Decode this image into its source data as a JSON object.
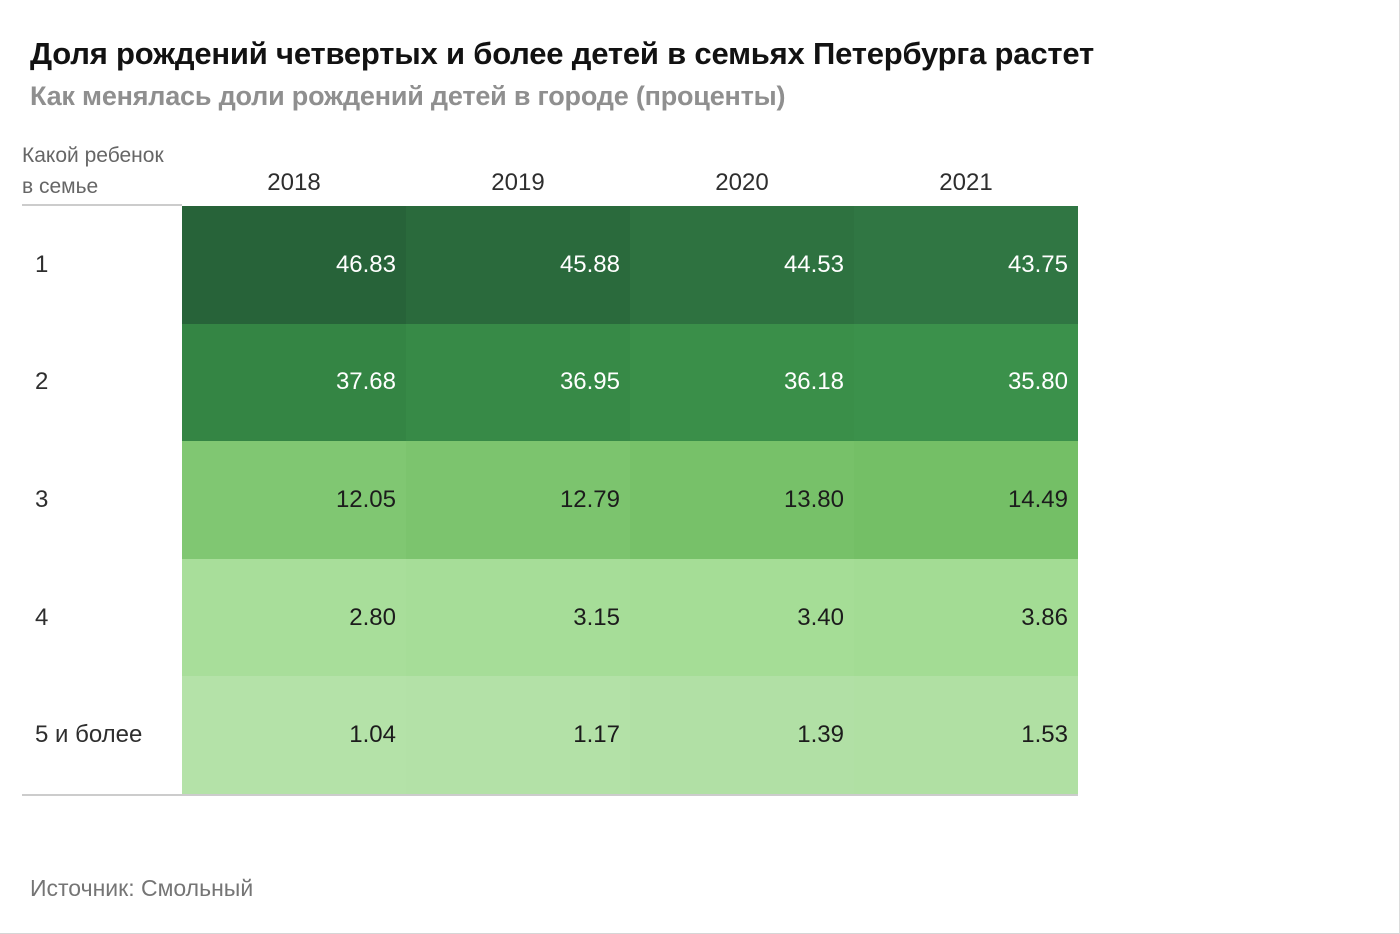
{
  "header": {
    "title": "Доля рождений четвертых и более детей в семьях Петербурга растет",
    "subtitle": "Как менялась доли рождений детей в городе (проценты)"
  },
  "footer": {
    "source": "Источник: Смольный"
  },
  "chart_data": {
    "type": "heatmap",
    "title": "Доля рождений четвертых и более детей в семьях Петербурга растет",
    "subtitle": "Как менялась доли рождений детей в городе (проценты)",
    "row_axis_label": "Какой ребенок\nв семье",
    "columns": [
      "2018",
      "2019",
      "2020",
      "2021"
    ],
    "unit": "percent",
    "legend": "none",
    "rows": [
      {
        "label": "1",
        "values": [
          46.83,
          45.88,
          44.53,
          43.75
        ],
        "display": [
          "46.83",
          "45.88",
          "44.53",
          "43.75"
        ],
        "cell_colors": [
          "#276339",
          "#2a6a3c",
          "#2e7240",
          "#307643"
        ],
        "text_color": "#ffffff"
      },
      {
        "label": "2",
        "values": [
          37.68,
          36.95,
          36.18,
          35.8
        ],
        "display": [
          "37.68",
          "36.95",
          "36.18",
          "35.80"
        ],
        "cell_colors": [
          "#348544",
          "#378a47",
          "#3a8f49",
          "#3b914b"
        ],
        "text_color": "#ffffff"
      },
      {
        "label": "3",
        "values": [
          12.05,
          12.79,
          13.8,
          14.49
        ],
        "display": [
          "12.05",
          "12.79",
          "13.80",
          "14.49"
        ],
        "cell_colors": [
          "#80c772",
          "#7cc46e",
          "#77c169",
          "#74bf66"
        ],
        "text_color": "#1c1c1c"
      },
      {
        "label": "4",
        "values": [
          2.8,
          3.15,
          3.4,
          3.86
        ],
        "display": [
          "2.80",
          "3.15",
          "3.40",
          "3.86"
        ],
        "cell_colors": [
          "#a8de9a",
          "#a6dd98",
          "#a5dd96",
          "#a3dc94"
        ],
        "text_color": "#1c1c1c"
      },
      {
        "label": "5 и более",
        "values": [
          1.04,
          1.17,
          1.39,
          1.53
        ],
        "display": [
          "1.04",
          "1.17",
          "1.39",
          "1.53"
        ],
        "cell_colors": [
          "#b4e2a8",
          "#b3e1a7",
          "#b1e0a5",
          "#b0e0a3"
        ],
        "text_color": "#1c1c1c"
      }
    ],
    "colors": {
      "value_high": "#276339",
      "value_low": "#b4e2a8",
      "rule": "#cccccc",
      "title": "#121212",
      "subtitle": "#8f8f8f",
      "axis_text": "#2e2e2e",
      "source_text": "#757575"
    }
  }
}
